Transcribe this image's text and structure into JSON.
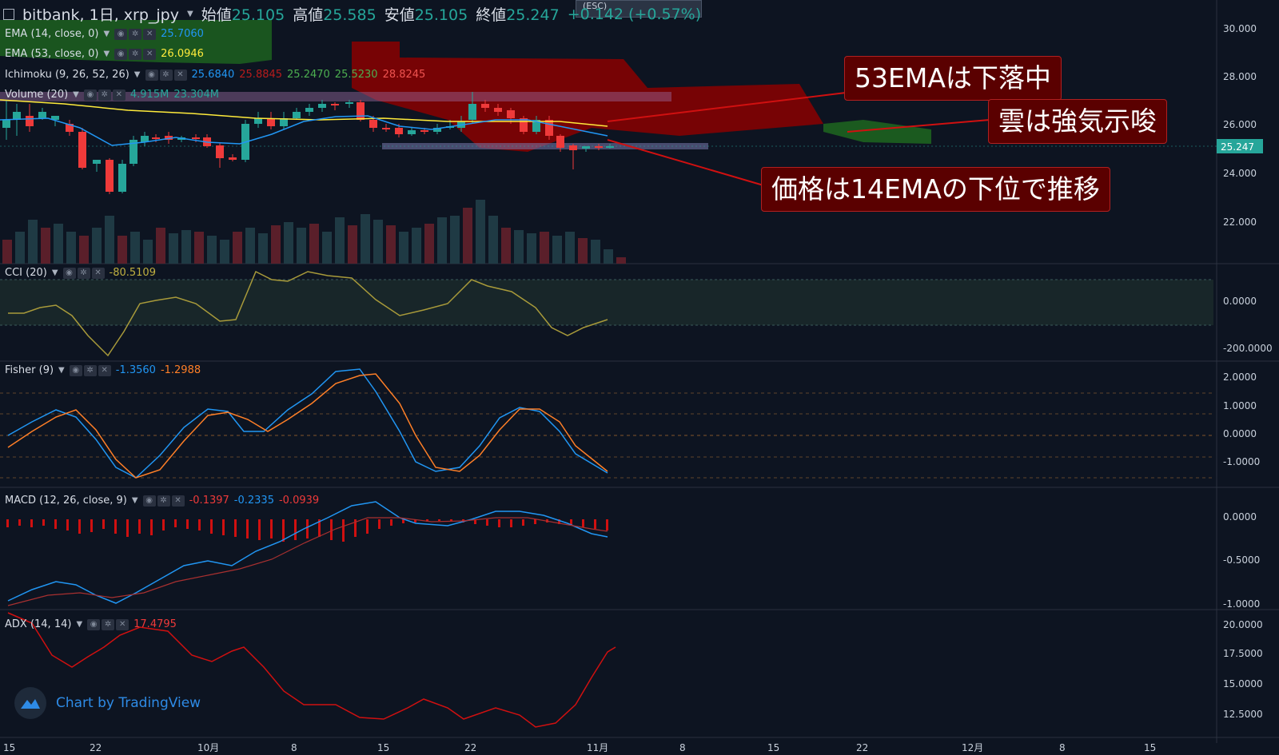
{
  "header": {
    "symbol": "bitbank, 1日, xrp_jpy",
    "open_label": "始値",
    "open": "25.105",
    "high_label": "高値",
    "high": "25.585",
    "low_label": "安値",
    "low": "25.105",
    "close_label": "終値",
    "close": "25.247",
    "change": "+0.142 (+0.57%)"
  },
  "esc_label": "(ESC)",
  "indicators": {
    "ema14": {
      "name": "EMA (14, close, 0)",
      "value": "25.7060",
      "color": "#2196f3"
    },
    "ema53": {
      "name": "EMA (53, close, 0)",
      "value": "26.0946",
      "color": "#ffeb3b"
    },
    "ichimoku": {
      "name": "Ichimoku (9, 26, 52, 26)",
      "v1": "25.6840",
      "v2": "25.8845",
      "v3": "25.2470",
      "v4": "25.5230",
      "v5": "28.8245"
    },
    "volume": {
      "name": "Volume (20)",
      "v1": "4.915M",
      "v2": "23.304M"
    },
    "cci": {
      "name": "CCI (20)",
      "value": "-80.5109"
    },
    "fisher": {
      "name": "Fisher (9)",
      "v1": "-1.3560",
      "v2": "-1.2988"
    },
    "macd": {
      "name": "MACD (12, 26, close, 9)",
      "v1": "-0.1397",
      "v2": "-0.2335",
      "v3": "-0.0939"
    },
    "adx": {
      "name": "ADX (14, 14)",
      "value": "17.4795"
    }
  },
  "callouts": {
    "c1": "53EMAは下落中",
    "c2": "雲は強気示唆",
    "c3": "価格は14EMAの下位で推移"
  },
  "price_axis": {
    "labels": [
      "30.000",
      "28.000",
      "26.000",
      "24.000",
      "22.000"
    ],
    "current": "25.247"
  },
  "cci_axis": [
    "0.0000",
    "-200.0000"
  ],
  "fisher_axis": [
    "2.0000",
    "1.0000",
    "0.0000",
    "-1.0000"
  ],
  "macd_axis": [
    "0.0000",
    "-0.5000",
    "-1.0000"
  ],
  "adx_axis": [
    "20.0000",
    "17.5000",
    "15.0000",
    "12.5000"
  ],
  "time_axis": [
    "15",
    "22",
    "10月",
    "8",
    "15",
    "22",
    "11月",
    "8",
    "15",
    "22",
    "12月",
    "8",
    "15"
  ],
  "branding": "Chart by TradingView",
  "colors": {
    "up": "#26a69a",
    "down": "#ef3a3a",
    "bg": "#0d1421"
  }
}
